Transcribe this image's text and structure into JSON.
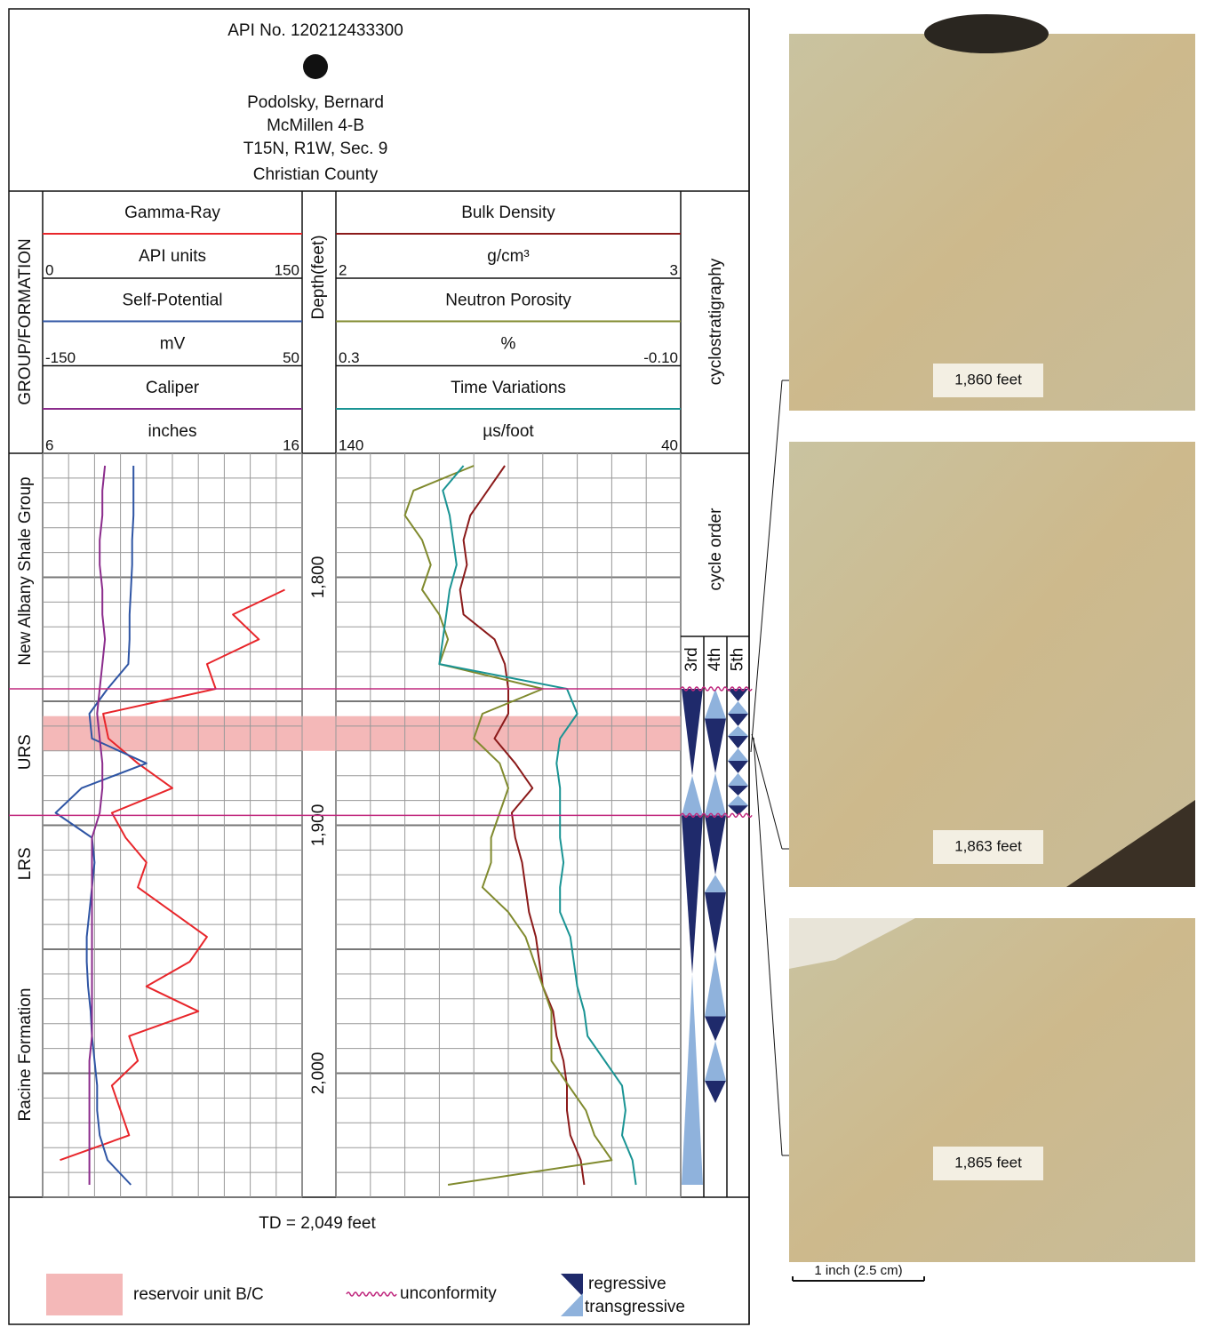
{
  "header": {
    "api": "API No. 120212433300",
    "operator": "Podolsky, Bernard",
    "well": "McMillen 4-B",
    "location": "T15N, R1W, Sec. 9",
    "county": "Christian County"
  },
  "chart_data": {
    "type": "well-log",
    "group_label": "GROUP/FORMATION",
    "depth_label": "Depth(feet)",
    "ylim": [
      1750,
      2050
    ],
    "yticks": [
      {
        "value": 1800,
        "label": "1,800"
      },
      {
        "value": 1900,
        "label": "1,900"
      },
      {
        "value": 2000,
        "label": "2,000"
      }
    ],
    "ygrid": [
      1750,
      1760,
      1770,
      1780,
      1790,
      1800,
      1810,
      1820,
      1830,
      1840,
      1850,
      1860,
      1870,
      1880,
      1890,
      1900,
      1910,
      1920,
      1930,
      1940,
      1950,
      1960,
      1970,
      1980,
      1990,
      2000,
      2010,
      2020,
      2030,
      2040,
      2050
    ],
    "depths": [
      1755,
      1765,
      1775,
      1785,
      1795,
      1805,
      1815,
      1825,
      1835,
      1845,
      1855,
      1865,
      1875,
      1885,
      1895,
      1905,
      1915,
      1925,
      1935,
      1945,
      1955,
      1965,
      1975,
      1985,
      1995,
      2005,
      2015,
      2025,
      2035,
      2045
    ],
    "tracks": [
      {
        "xgrid": [
          0,
          15,
          30,
          45,
          60,
          75,
          90,
          105,
          120,
          135,
          150
        ],
        "curves": [
          {
            "name": "Gamma-Ray",
            "unit": "API units",
            "color": "#e8262b",
            "xlim": [
              0,
              150
            ],
            "values": [
              null,
              null,
              null,
              null,
              null,
              140,
              110,
              125,
              95,
              100,
              35,
              38,
              55,
              75,
              40,
              48,
              60,
              55,
              75,
              95,
              85,
              60,
              90,
              50,
              55,
              40,
              45,
              50,
              10,
              null
            ]
          },
          {
            "name": "Self-Potential",
            "unit": "mV",
            "color": "#2f55a4",
            "xlim": [
              -150,
              50
            ],
            "values": [
              -80,
              -80,
              -80,
              -81,
              -81,
              -82,
              -83,
              -83,
              -84,
              -100,
              -114,
              -112,
              -70,
              -120,
              -140,
              -112,
              -110,
              -112,
              -114,
              -116,
              -116,
              -115,
              -113,
              -112,
              -110,
              -108,
              -108,
              -106,
              -100,
              -82
            ]
          },
          {
            "name": "Caliper",
            "unit": "inches",
            "color": "#8b2c8c",
            "xlim": [
              6,
              16
            ],
            "values": [
              8.4,
              8.3,
              8.3,
              8.2,
              8.2,
              8.3,
              8.3,
              8.4,
              8.3,
              8.2,
              8.1,
              8.2,
              8.3,
              8.3,
              8.2,
              7.9,
              7.9,
              7.9,
              7.9,
              7.9,
              7.9,
              7.9,
              7.9,
              7.9,
              7.8,
              7.8,
              7.8,
              7.8,
              7.8,
              7.8
            ]
          }
        ]
      },
      {
        "xgrid": [
          2,
          2.1,
          2.2,
          2.3,
          2.4,
          2.5,
          2.6,
          2.7,
          2.8,
          2.9,
          3
        ],
        "curves": [
          {
            "name": "Bulk Density",
            "unit": "g/cm³",
            "color": "#8b1a1a",
            "xlim": [
              2,
              3
            ],
            "values": [
              2.49,
              2.44,
              2.39,
              2.37,
              2.38,
              2.36,
              2.37,
              2.46,
              2.49,
              2.5,
              2.5,
              2.46,
              2.52,
              2.57,
              2.51,
              2.52,
              2.54,
              2.55,
              2.56,
              2.58,
              2.59,
              2.6,
              2.63,
              2.64,
              2.66,
              2.67,
              2.67,
              2.68,
              2.71,
              2.72
            ]
          },
          {
            "name": "Neutron Porosity",
            "unit": "%",
            "color": "#808a2e",
            "xlim": [
              0.3,
              {
                "value": -0.1,
                "label": "-0.10"
              }
            ],
            "values": [
              0.14,
              0.21,
              0.22,
              0.2,
              0.19,
              0.2,
              0.18,
              0.17,
              0.18,
              0.06,
              0.13,
              0.14,
              0.11,
              0.1,
              0.11,
              0.12,
              0.12,
              0.13,
              0.1,
              0.08,
              0.07,
              0.06,
              0.05,
              0.05,
              0.05,
              0.03,
              0.01,
              0,
              -0.02,
              0.17
            ]
          },
          {
            "name": "Time Variations",
            "unit": "µs/foot",
            "color": "#1a9494",
            "xlim": [
              140,
              40
            ],
            "values": [
              103,
              109,
              107,
              106,
              105,
              107,
              108,
              109,
              110,
              73,
              70,
              75,
              76,
              75,
              75,
              75,
              74,
              75,
              75,
              72,
              71,
              70,
              68,
              67,
              62,
              57,
              56,
              57,
              54,
              53
            ]
          }
        ]
      }
    ],
    "formations": [
      {
        "name": "New Albany Shale Group",
        "top": 1750,
        "bottom": 1845
      },
      {
        "name": "URS",
        "top": 1845,
        "bottom": 1896
      },
      {
        "name": "LRS",
        "top": 1896,
        "bottom": 1935
      },
      {
        "name": "Racine Formation",
        "top": 1935,
        "bottom": 2050
      }
    ],
    "reservoir": {
      "label": "reservoir unit B/C",
      "top": 1856,
      "bottom": 1870,
      "color": "#f4b8b8"
    },
    "unconformity": {
      "label": "unconformity",
      "depths": [
        1845,
        1896
      ],
      "color": "#c0287e"
    },
    "cyclostratigraphy_label": "cyclostratigraphy",
    "cycle_order_label": "cycle order",
    "regressive_color": "#1f2a6b",
    "transgressive_color": "#8fb2dc",
    "cycles": [
      {
        "name": "3rd",
        "regressive": [
          [
            1845,
            1880
          ],
          [
            1896,
            1960
          ]
        ],
        "transgressive": [
          [
            1880,
            1896
          ],
          [
            1960,
            2045
          ]
        ]
      },
      {
        "name": "4th",
        "regressive": [
          [
            1857,
            1879
          ],
          [
            1896,
            1920
          ],
          [
            1927,
            1952
          ],
          [
            1977,
            1987
          ],
          [
            2003,
            2012
          ]
        ],
        "transgressive": [
          [
            1845,
            1857
          ],
          [
            1879,
            1896
          ],
          [
            1920,
            1927
          ],
          [
            1952,
            1977
          ],
          [
            1987,
            2003
          ]
        ]
      },
      {
        "name": "5th",
        "regressive": [
          [
            1845,
            1850
          ],
          [
            1855,
            1860
          ],
          [
            1864,
            1869
          ],
          [
            1874,
            1879
          ],
          [
            1884,
            1888
          ],
          [
            1892,
            1896
          ]
        ],
        "transgressive": [
          [
            1850,
            1855
          ],
          [
            1860,
            1864
          ],
          [
            1869,
            1874
          ],
          [
            1879,
            1884
          ],
          [
            1888,
            1892
          ]
        ]
      }
    ],
    "td": "TD = 2,049 feet",
    "legend": {
      "regressive": "regressive",
      "transgressive": "transgressive"
    }
  },
  "photos": [
    {
      "label": "1,860 feet"
    },
    {
      "label": "1,863 feet"
    },
    {
      "label": "1,865 feet"
    }
  ],
  "scale_bar": "1 inch (2.5 cm)"
}
